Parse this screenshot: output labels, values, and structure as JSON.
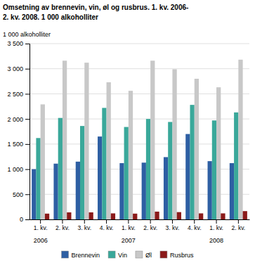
{
  "chart_data": {
    "type": "bar",
    "title": "Omsetning av brennevin, vin, øl og rusbrus. 1. kv. 2006-",
    "subtitle": "2. kv. 2008. 1 000 alkoholliter",
    "y_label": "1 000 alkoholliter",
    "categories": [
      "1. kv.",
      "2. kv.",
      "3. kv.",
      "4. kv.",
      "1. kv.",
      "2. kv.",
      "3. kv.",
      "4. kv.",
      "1. kv.",
      "2. kv."
    ],
    "series": [
      {
        "name": "Brennevin",
        "color": "#2E5FA3",
        "values": [
          1000,
          1110,
          1150,
          1650,
          1120,
          1130,
          1240,
          1700,
          1160,
          1120
        ]
      },
      {
        "name": "Vin",
        "color": "#3AA89A",
        "values": [
          1620,
          2020,
          1860,
          2220,
          1840,
          2000,
          1940,
          2280,
          1970,
          2130
        ]
      },
      {
        "name": "Øl",
        "color": "#C8C8C8",
        "values": [
          2290,
          3160,
          3120,
          2730,
          2560,
          3160,
          2990,
          2800,
          2630,
          3180
        ]
      },
      {
        "name": "Rusbrus",
        "color": "#8B1A1A",
        "values": [
          115,
          140,
          140,
          120,
          115,
          155,
          145,
          120,
          120,
          165
        ]
      }
    ],
    "annotations": [
      {
        "text": "2006",
        "x": 0
      },
      {
        "text": "2007",
        "x": 4
      },
      {
        "text": "2008",
        "x": 8
      }
    ],
    "ylim": [
      0,
      3500
    ],
    "yticks": [
      0,
      500,
      {
        "value": 1000,
        "label": "1 000"
      },
      {
        "value": 1500,
        "label": "1 500"
      },
      {
        "value": 2000,
        "label": "2 000"
      },
      {
        "value": 2500,
        "label": "2 500"
      },
      {
        "value": 3000,
        "label": "3 000"
      },
      {
        "value": 3500,
        "label": "3 500"
      }
    ],
    "grid": true,
    "legend": "bottom"
  }
}
